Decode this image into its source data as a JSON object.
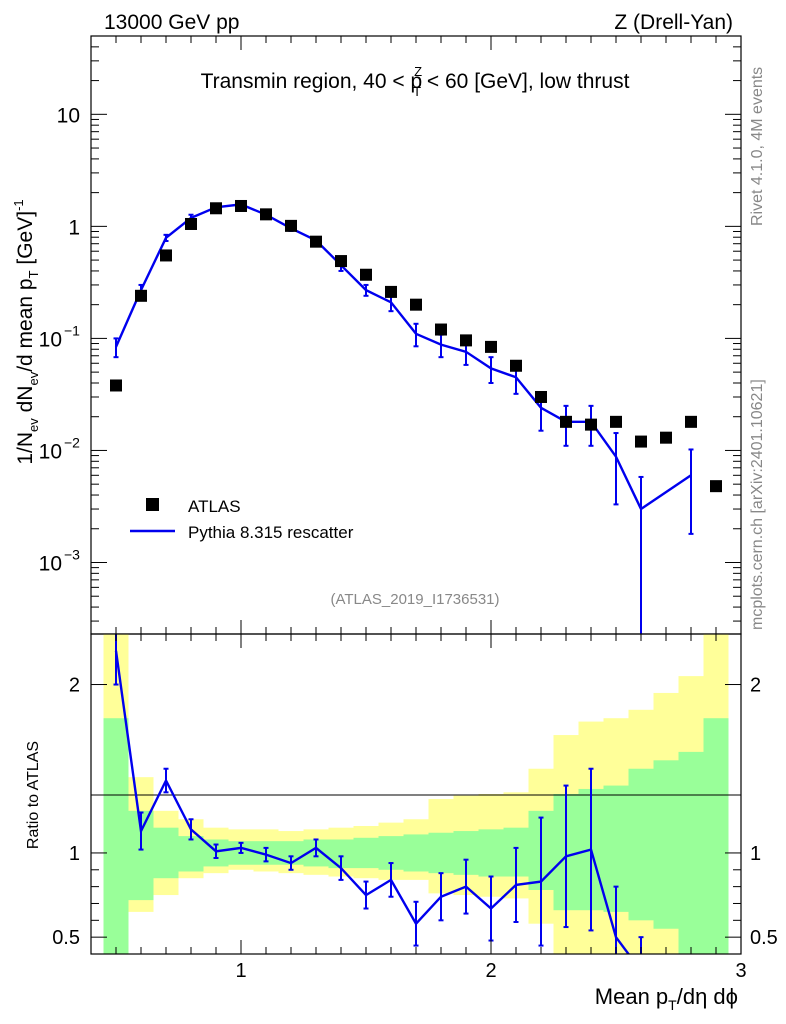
{
  "header": {
    "left": "13000 GeV pp",
    "right": "Z (Drell-Yan)"
  },
  "side": {
    "rivet": "Rivet 4.1.0,  4M events",
    "mcplots": "mcplots.cern.ch [arXiv:2401.10621]"
  },
  "colors": {
    "mc": "#0000ee",
    "data": "#000000",
    "band_inner": "#99ff99",
    "band_outer": "#ffff99",
    "side_text": "#888888"
  },
  "chart_data": {
    "type": "line",
    "title": "Transmin region, 40 < p_T^Z < 60 [GeV], low thrust",
    "title_parts": {
      "pre": "Transmin region, 40 < p",
      "sup": "Z",
      "sub": "T",
      "post": " < 60 [GeV], low thrust"
    },
    "analysis_label": "(ATLAS_2019_I1736531)",
    "xlabel": "Mean p_T/dη dϕ",
    "xlabel_parts": {
      "pre": "Mean p",
      "sub": "T",
      "post": "/dη dϕ"
    },
    "ylabel": "1/N_ev dN_ev/d mean p_T [GeV]^-1",
    "ylabel_parts": {
      "a": "1/N",
      "a_sub": "ev",
      "b": " dN",
      "b_sub": "ev",
      "c": "/d mean p",
      "c_sub": "T",
      "d": " [GeV]",
      "d_sup": "-1"
    },
    "ratio_ylabel": "Ratio to ATLAS",
    "xlim": [
      0.4,
      3.0
    ],
    "ylim_log": [
      0.00023,
      50
    ],
    "ratio_ylim": [
      0.4,
      2.3
    ],
    "x_ticks": [
      {
        "value": 1,
        "label": "1"
      },
      {
        "value": 2,
        "label": "2"
      },
      {
        "value": 3,
        "label": "3"
      }
    ],
    "y_ticks": [
      {
        "value": 10,
        "base": "10",
        "exp": ""
      },
      {
        "value": 1,
        "base": "1",
        "exp": ""
      },
      {
        "value": 0.1,
        "base": "10",
        "exp": "−1"
      },
      {
        "value": 0.01,
        "base": "10",
        "exp": "−2"
      },
      {
        "value": 0.001,
        "base": "10",
        "exp": "−3"
      }
    ],
    "ratio_ticks": [
      {
        "value": 0.5,
        "label": "0.5"
      },
      {
        "value": 1,
        "label": "1"
      },
      {
        "value": 2,
        "label": "2"
      }
    ],
    "legend": {
      "position": "bottom-left",
      "data_label": "ATLAS",
      "mc_label": "Pythia 8.315 rescatter"
    },
    "data_series": {
      "name": "ATLAS",
      "x": [
        0.5,
        0.6,
        0.7,
        0.8,
        0.9,
        1.0,
        1.1,
        1.2,
        1.3,
        1.4,
        1.5,
        1.6,
        1.7,
        1.8,
        1.9,
        2.0,
        2.1,
        2.2,
        2.3,
        2.4,
        2.5,
        2.6,
        2.7,
        2.8,
        2.9
      ],
      "y": [
        0.038,
        0.24,
        0.55,
        1.05,
        1.45,
        1.52,
        1.28,
        1.01,
        0.73,
        0.49,
        0.37,
        0.26,
        0.2,
        0.12,
        0.096,
        0.084,
        0.057,
        0.03,
        0.018,
        0.017,
        0.018,
        0.012,
        0.013,
        0.018,
        0.0048
      ]
    },
    "mc_series": {
      "name": "Pythia 8.315 rescatter",
      "x": [
        0.5,
        0.6,
        0.7,
        0.8,
        0.9,
        1.0,
        1.1,
        1.2,
        1.3,
        1.4,
        1.5,
        1.6,
        1.7,
        1.8,
        1.9,
        2.0,
        2.1,
        2.2,
        2.3,
        2.4,
        2.5,
        2.6,
        2.8
      ],
      "y": [
        0.084,
        0.27,
        0.79,
        1.19,
        1.48,
        1.57,
        1.27,
        0.96,
        0.75,
        0.45,
        0.27,
        0.21,
        0.11,
        0.088,
        0.076,
        0.054,
        0.045,
        0.024,
        0.018,
        0.018,
        0.0088,
        0.003,
        0.006
      ],
      "y_err": [
        0.016,
        0.03,
        0.05,
        0.08,
        0.07,
        0.06,
        0.05,
        0.05,
        0.04,
        0.05,
        0.03,
        0.035,
        0.025,
        0.02,
        0.018,
        0.014,
        0.013,
        0.009,
        0.007,
        0.007,
        0.0055,
        0.0028,
        0.0042
      ]
    },
    "ratio_series": {
      "x": [
        0.5,
        0.6,
        0.7,
        0.8,
        0.9,
        1.0,
        1.1,
        1.2,
        1.3,
        1.4,
        1.5,
        1.6,
        1.7,
        1.8,
        1.9,
        2.0,
        2.1,
        2.2,
        2.3,
        2.4,
        2.5,
        2.6
      ],
      "y": [
        2.2,
        1.13,
        1.43,
        1.14,
        1.01,
        1.03,
        0.99,
        0.94,
        1.03,
        0.91,
        0.75,
        0.84,
        0.58,
        0.74,
        0.8,
        0.67,
        0.81,
        0.83,
        0.98,
        1.02,
        0.5,
        0.3
      ],
      "y_err": [
        0.2,
        0.11,
        0.07,
        0.06,
        0.04,
        0.03,
        0.04,
        0.04,
        0.05,
        0.07,
        0.08,
        0.1,
        0.13,
        0.14,
        0.16,
        0.19,
        0.22,
        0.38,
        0.42,
        0.48,
        0.3,
        0.2
      ]
    },
    "bands": {
      "edges": [
        0.45,
        0.55,
        0.65,
        0.75,
        0.85,
        0.95,
        1.05,
        1.15,
        1.25,
        1.35,
        1.45,
        1.55,
        1.65,
        1.75,
        1.85,
        1.95,
        2.05,
        2.15,
        2.25,
        2.35,
        2.45,
        2.55,
        2.65,
        2.75,
        2.85,
        2.95
      ],
      "inner": [
        [
          0.4,
          1.8
        ],
        [
          0.72,
          1.25
        ],
        [
          0.85,
          1.15
        ],
        [
          0.89,
          1.1
        ],
        [
          0.92,
          1.08
        ],
        [
          0.93,
          1.07
        ],
        [
          0.93,
          1.07
        ],
        [
          0.93,
          1.07
        ],
        [
          0.92,
          1.08
        ],
        [
          0.91,
          1.08
        ],
        [
          0.91,
          1.09
        ],
        [
          0.9,
          1.1
        ],
        [
          0.89,
          1.11
        ],
        [
          0.88,
          1.12
        ],
        [
          0.87,
          1.13
        ],
        [
          0.86,
          1.14
        ],
        [
          0.86,
          1.15
        ],
        [
          0.78,
          1.25
        ],
        [
          0.66,
          1.35
        ],
        [
          0.66,
          1.38
        ],
        [
          0.65,
          1.4
        ],
        [
          0.6,
          1.5
        ],
        [
          0.55,
          1.55
        ],
        [
          0.4,
          1.6
        ],
        [
          0.4,
          1.8
        ]
      ],
      "outer": [
        [
          0.4,
          2.3
        ],
        [
          0.65,
          1.45
        ],
        [
          0.75,
          1.25
        ],
        [
          0.85,
          1.2
        ],
        [
          0.88,
          1.15
        ],
        [
          0.9,
          1.14
        ],
        [
          0.89,
          1.14
        ],
        [
          0.88,
          1.13
        ],
        [
          0.87,
          1.14
        ],
        [
          0.86,
          1.15
        ],
        [
          0.85,
          1.16
        ],
        [
          0.84,
          1.18
        ],
        [
          0.84,
          1.2
        ],
        [
          0.76,
          1.32
        ],
        [
          0.75,
          1.34
        ],
        [
          0.74,
          1.35
        ],
        [
          0.73,
          1.36
        ],
        [
          0.58,
          1.5
        ],
        [
          0.4,
          1.7
        ],
        [
          0.4,
          1.78
        ],
        [
          0.4,
          1.8
        ],
        [
          0.4,
          1.85
        ],
        [
          0.4,
          1.95
        ],
        [
          0.4,
          2.05
        ],
        [
          0.4,
          2.3
        ]
      ]
    }
  }
}
